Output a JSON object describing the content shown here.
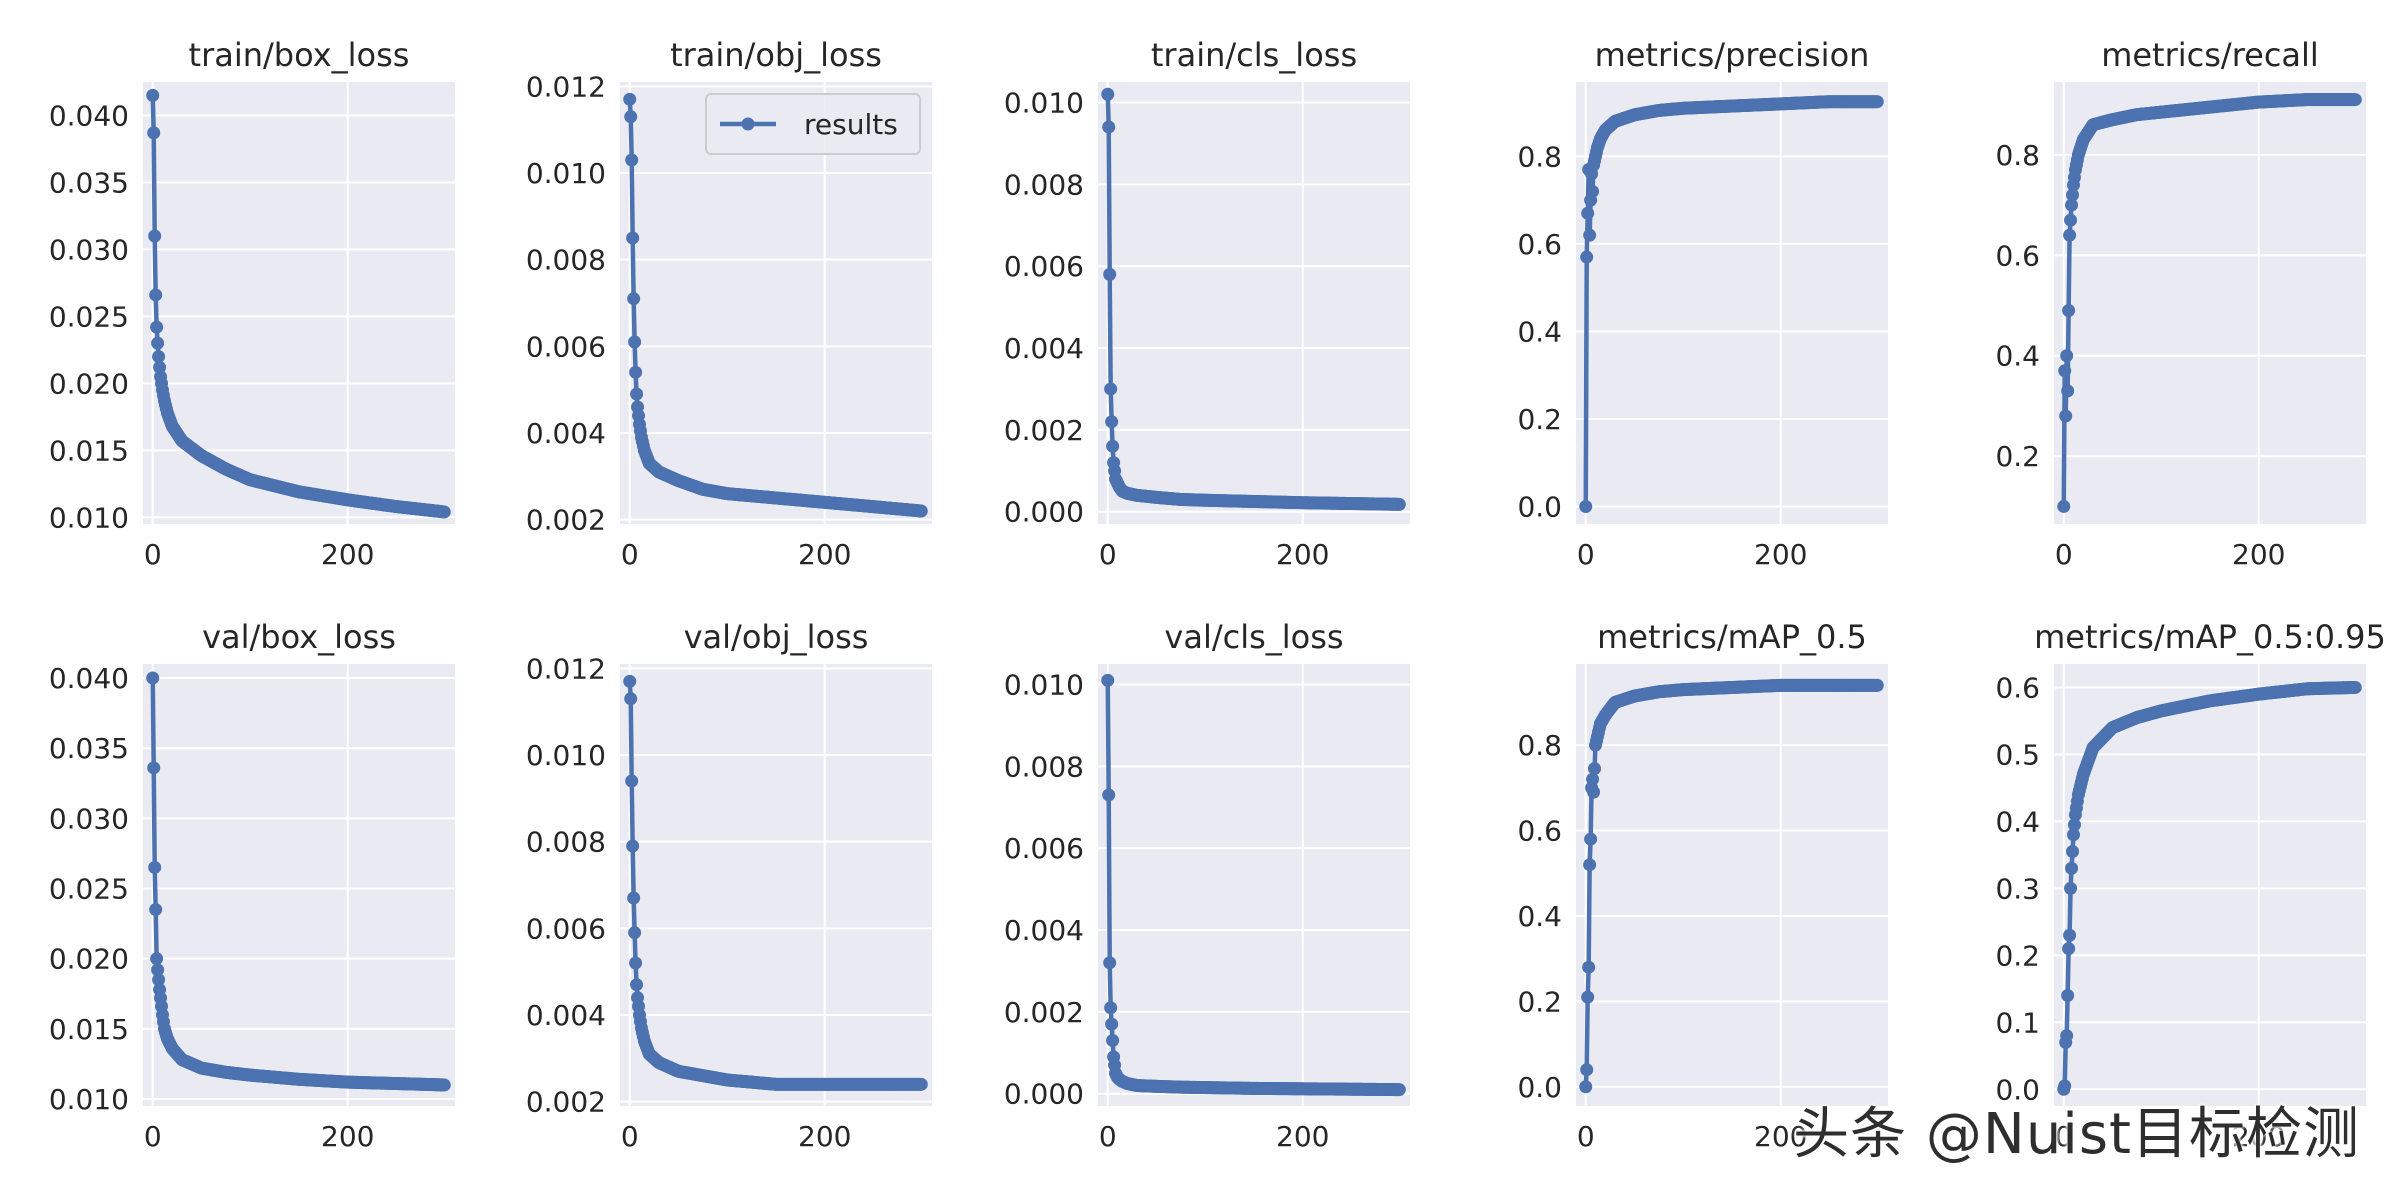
{
  "figure": {
    "watermark": "头条 @Nuist目标检测",
    "style": {
      "facecolor": "#eaeaf2",
      "gridcolor": "#ffffff",
      "linecolor": "#4c72b0",
      "textcolor": "#262626"
    }
  },
  "chart_data": [
    {
      "type": "line",
      "title": "train/box_loss",
      "xlabel": "",
      "ylabel": "",
      "xlim": [
        -10,
        310
      ],
      "ylim": [
        0.0095,
        0.0425
      ],
      "xticks": [
        0,
        200
      ],
      "xtick_labels": [
        "0",
        "200"
      ],
      "yticks": [
        0.01,
        0.015,
        0.02,
        0.025,
        0.03,
        0.035,
        0.04
      ],
      "ytick_labels": [
        "0.010",
        "0.015",
        "0.020",
        "0.025",
        "0.030",
        "0.035",
        "0.040"
      ],
      "grid": true,
      "legend": null,
      "series": [
        {
          "name": "results",
          "x_max": 299,
          "key_x": [
            0,
            1,
            2,
            3,
            4,
            5,
            6,
            7,
            8,
            10,
            12,
            15,
            20,
            30,
            50,
            75,
            100,
            150,
            200,
            250,
            299
          ],
          "key_y": [
            0.0415,
            0.0387,
            0.031,
            0.0266,
            0.0242,
            0.023,
            0.022,
            0.0212,
            0.0205,
            0.0195,
            0.0187,
            0.0178,
            0.0168,
            0.0157,
            0.0146,
            0.0136,
            0.0128,
            0.0119,
            0.0113,
            0.0108,
            0.0104
          ]
        }
      ]
    },
    {
      "type": "line",
      "title": "train/obj_loss",
      "xlabel": "",
      "ylabel": "",
      "xlim": [
        -10,
        310
      ],
      "ylim": [
        0.0019,
        0.0121
      ],
      "xticks": [
        0,
        200
      ],
      "xtick_labels": [
        "0",
        "200"
      ],
      "yticks": [
        0.002,
        0.004,
        0.006,
        0.008,
        0.01,
        0.012
      ],
      "ytick_labels": [
        "0.002",
        "0.004",
        "0.006",
        "0.008",
        "0.010",
        "0.012"
      ],
      "grid": true,
      "legend": "upper right",
      "series": [
        {
          "name": "results",
          "x_max": 299,
          "key_x": [
            0,
            1,
            2,
            3,
            4,
            5,
            6,
            7,
            8,
            10,
            12,
            15,
            20,
            30,
            50,
            75,
            100,
            150,
            200,
            250,
            299
          ],
          "key_y": [
            0.0117,
            0.0113,
            0.0103,
            0.0085,
            0.0071,
            0.0061,
            0.0054,
            0.0049,
            0.0046,
            0.0042,
            0.0039,
            0.0036,
            0.0033,
            0.0031,
            0.0029,
            0.0027,
            0.0026,
            0.0025,
            0.0024,
            0.0023,
            0.0022
          ]
        }
      ]
    },
    {
      "type": "line",
      "title": "train/cls_loss",
      "xlabel": "",
      "ylabel": "",
      "xlim": [
        -10,
        310
      ],
      "ylim": [
        -0.0003,
        0.0105
      ],
      "xticks": [
        0,
        200
      ],
      "xtick_labels": [
        "0",
        "200"
      ],
      "yticks": [
        0.0,
        0.002,
        0.004,
        0.006,
        0.008,
        0.01
      ],
      "ytick_labels": [
        "0.000",
        "0.002",
        "0.004",
        "0.006",
        "0.008",
        "0.010"
      ],
      "grid": true,
      "legend": null,
      "series": [
        {
          "name": "results",
          "x_max": 299,
          "key_x": [
            0,
            1,
            2,
            3,
            4,
            5,
            6,
            7,
            8,
            10,
            12,
            15,
            20,
            30,
            50,
            75,
            100,
            150,
            200,
            250,
            299
          ],
          "key_y": [
            0.0102,
            0.0094,
            0.0058,
            0.003,
            0.0022,
            0.0016,
            0.0012,
            0.001,
            0.0008,
            0.0007,
            0.0006,
            0.0005,
            0.00045,
            0.0004,
            0.00035,
            0.0003,
            0.00028,
            0.00025,
            0.00022,
            0.0002,
            0.00018
          ]
        }
      ]
    },
    {
      "type": "line",
      "title": "metrics/precision",
      "xlabel": "",
      "ylabel": "",
      "xlim": [
        -10,
        310
      ],
      "ylim": [
        -0.04,
        0.97
      ],
      "xticks": [
        0,
        200
      ],
      "xtick_labels": [
        "0",
        "200"
      ],
      "yticks": [
        0.0,
        0.2,
        0.4,
        0.6,
        0.8
      ],
      "ytick_labels": [
        "0.0",
        "0.2",
        "0.4",
        "0.6",
        "0.8"
      ],
      "grid": true,
      "legend": null,
      "series": [
        {
          "name": "results",
          "x_max": 299,
          "key_x": [
            0,
            1,
            2,
            3,
            4,
            5,
            6,
            7,
            8,
            10,
            12,
            15,
            20,
            30,
            50,
            75,
            100,
            150,
            200,
            250,
            299
          ],
          "key_y": [
            0.0,
            0.57,
            0.67,
            0.77,
            0.62,
            0.7,
            0.76,
            0.72,
            0.78,
            0.8,
            0.82,
            0.84,
            0.86,
            0.88,
            0.895,
            0.905,
            0.91,
            0.915,
            0.92,
            0.925,
            0.925
          ]
        }
      ]
    },
    {
      "type": "line",
      "title": "metrics/recall",
      "xlabel": "",
      "ylabel": "",
      "xlim": [
        -10,
        310
      ],
      "ylim": [
        0.065,
        0.945
      ],
      "xticks": [
        0,
        200
      ],
      "xtick_labels": [
        "0",
        "200"
      ],
      "yticks": [
        0.2,
        0.4,
        0.6,
        0.8
      ],
      "ytick_labels": [
        "0.2",
        "0.4",
        "0.6",
        "0.8"
      ],
      "grid": true,
      "legend": null,
      "series": [
        {
          "name": "results",
          "x_max": 299,
          "key_x": [
            0,
            1,
            2,
            3,
            4,
            5,
            6,
            7,
            8,
            10,
            12,
            15,
            20,
            30,
            50,
            75,
            100,
            150,
            200,
            250,
            299
          ],
          "key_y": [
            0.1,
            0.37,
            0.28,
            0.4,
            0.33,
            0.49,
            0.64,
            0.67,
            0.7,
            0.74,
            0.77,
            0.8,
            0.83,
            0.86,
            0.87,
            0.88,
            0.885,
            0.895,
            0.905,
            0.91,
            0.91
          ]
        }
      ]
    },
    {
      "type": "line",
      "title": "val/box_loss",
      "xlabel": "",
      "ylabel": "",
      "xlim": [
        -10,
        310
      ],
      "ylim": [
        0.0095,
        0.041
      ],
      "xticks": [
        0,
        200
      ],
      "xtick_labels": [
        "0",
        "200"
      ],
      "yticks": [
        0.01,
        0.015,
        0.02,
        0.025,
        0.03,
        0.035,
        0.04
      ],
      "ytick_labels": [
        "0.010",
        "0.015",
        "0.020",
        "0.025",
        "0.030",
        "0.035",
        "0.040"
      ],
      "grid": true,
      "legend": null,
      "series": [
        {
          "name": "results",
          "x_max": 299,
          "key_x": [
            0,
            1,
            2,
            3,
            4,
            5,
            6,
            7,
            8,
            10,
            12,
            15,
            20,
            30,
            50,
            75,
            100,
            150,
            200,
            250,
            299
          ],
          "key_y": [
            0.04,
            0.0336,
            0.0265,
            0.0235,
            0.02,
            0.0192,
            0.0185,
            0.0178,
            0.0172,
            0.016,
            0.015,
            0.0143,
            0.0136,
            0.0128,
            0.0122,
            0.0119,
            0.0117,
            0.0114,
            0.0112,
            0.0111,
            0.011
          ]
        }
      ]
    },
    {
      "type": "line",
      "title": "val/obj_loss",
      "xlabel": "",
      "ylabel": "",
      "xlim": [
        -10,
        310
      ],
      "ylim": [
        0.0019,
        0.0121
      ],
      "xticks": [
        0,
        200
      ],
      "xtick_labels": [
        "0",
        "200"
      ],
      "yticks": [
        0.002,
        0.004,
        0.006,
        0.008,
        0.01,
        0.012
      ],
      "ytick_labels": [
        "0.002",
        "0.004",
        "0.006",
        "0.008",
        "0.010",
        "0.012"
      ],
      "grid": true,
      "legend": null,
      "series": [
        {
          "name": "results",
          "x_max": 299,
          "key_x": [
            0,
            1,
            2,
            3,
            4,
            5,
            6,
            7,
            8,
            10,
            12,
            15,
            20,
            30,
            50,
            75,
            100,
            150,
            200,
            250,
            299
          ],
          "key_y": [
            0.0117,
            0.0113,
            0.0094,
            0.0079,
            0.0067,
            0.0059,
            0.0052,
            0.0047,
            0.0044,
            0.004,
            0.0037,
            0.0034,
            0.0031,
            0.0029,
            0.0027,
            0.0026,
            0.0025,
            0.0024,
            0.0024,
            0.0024,
            0.0024
          ]
        }
      ]
    },
    {
      "type": "line",
      "title": "val/cls_loss",
      "xlabel": "",
      "ylabel": "",
      "xlim": [
        -10,
        310
      ],
      "ylim": [
        -0.0003,
        0.0105
      ],
      "xticks": [
        0,
        200
      ],
      "xtick_labels": [
        "0",
        "200"
      ],
      "yticks": [
        0.0,
        0.002,
        0.004,
        0.006,
        0.008,
        0.01
      ],
      "ytick_labels": [
        "0.000",
        "0.002",
        "0.004",
        "0.006",
        "0.008",
        "0.010"
      ],
      "grid": true,
      "legend": null,
      "series": [
        {
          "name": "results",
          "x_max": 299,
          "key_x": [
            0,
            1,
            2,
            3,
            4,
            5,
            6,
            7,
            8,
            10,
            12,
            15,
            20,
            30,
            50,
            75,
            100,
            150,
            200,
            250,
            299
          ],
          "key_y": [
            0.0101,
            0.0073,
            0.0032,
            0.0021,
            0.0017,
            0.0013,
            0.0009,
            0.0007,
            0.0005,
            0.0004,
            0.00035,
            0.0003,
            0.00025,
            0.0002,
            0.00018,
            0.00016,
            0.00015,
            0.00013,
            0.00012,
            0.00011,
            0.0001
          ]
        }
      ]
    },
    {
      "type": "line",
      "title": "metrics/mAP_0.5",
      "xlabel": "",
      "ylabel": "",
      "xlim": [
        -10,
        310
      ],
      "ylim": [
        -0.045,
        0.99
      ],
      "xticks": [
        0,
        200
      ],
      "xtick_labels": [
        "0",
        "200"
      ],
      "yticks": [
        0.0,
        0.2,
        0.4,
        0.6,
        0.8
      ],
      "ytick_labels": [
        "0.0",
        "0.2",
        "0.4",
        "0.6",
        "0.8"
      ],
      "grid": true,
      "legend": null,
      "series": [
        {
          "name": "results",
          "x_max": 299,
          "key_x": [
            0,
            1,
            2,
            3,
            4,
            5,
            6,
            7,
            8,
            10,
            12,
            15,
            20,
            30,
            50,
            75,
            100,
            150,
            200,
            250,
            299
          ],
          "key_y": [
            0.0,
            0.04,
            0.21,
            0.28,
            0.52,
            0.58,
            0.7,
            0.72,
            0.69,
            0.8,
            0.82,
            0.85,
            0.87,
            0.9,
            0.915,
            0.925,
            0.93,
            0.935,
            0.94,
            0.94,
            0.94
          ]
        }
      ]
    },
    {
      "type": "line",
      "title": "metrics/mAP_0.5:0.95",
      "xlabel": "",
      "ylabel": "",
      "xlim": [
        -10,
        310
      ],
      "ylim": [
        -0.025,
        0.635
      ],
      "xticks": [
        0,
        200
      ],
      "xtick_labels": [
        "0",
        "200"
      ],
      "yticks": [
        0.0,
        0.1,
        0.2,
        0.3,
        0.4,
        0.5,
        0.6
      ],
      "ytick_labels": [
        "0.0",
        "0.1",
        "0.2",
        "0.3",
        "0.4",
        "0.5",
        "0.6"
      ],
      "grid": true,
      "legend": null,
      "series": [
        {
          "name": "results",
          "x_max": 299,
          "key_x": [
            0,
            1,
            2,
            3,
            4,
            5,
            6,
            7,
            8,
            10,
            12,
            15,
            20,
            30,
            50,
            75,
            100,
            150,
            200,
            250,
            299
          ],
          "key_y": [
            0.0,
            0.005,
            0.07,
            0.08,
            0.14,
            0.21,
            0.23,
            0.3,
            0.33,
            0.38,
            0.41,
            0.44,
            0.47,
            0.51,
            0.54,
            0.555,
            0.565,
            0.58,
            0.59,
            0.598,
            0.6
          ]
        }
      ]
    }
  ]
}
